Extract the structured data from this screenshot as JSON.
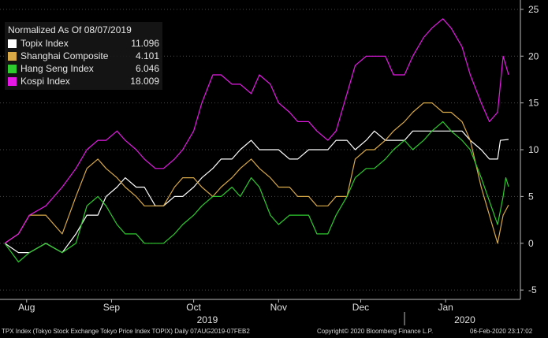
{
  "legend": {
    "header": "Normalized As Of 08/07/2019",
    "items": [
      {
        "name": "Topix Index",
        "value": "11.096",
        "color": "#ffffff"
      },
      {
        "name": "Shanghai Composite",
        "value": "4.101",
        "color": "#d9a948"
      },
      {
        "name": "Hang Seng Index",
        "value": "6.046",
        "color": "#2ecc2e"
      },
      {
        "name": "Kospi Index",
        "value": "18.009",
        "color": "#e619e6"
      }
    ]
  },
  "footer": {
    "left": "TPX Index (Tokyo Stock Exchange Tokyo Price Index TOPIX) Daily 07AUG2019-07FEB2",
    "copyright": "Copyright© 2020 Bloomberg Finance L.P.",
    "timestamp": "06-Feb-2020 23:17:02"
  },
  "chart_data": {
    "type": "line",
    "x_range": [
      "2019-08-07",
      "2020-02-07"
    ],
    "ylim": [
      -6,
      26
    ],
    "yticks": [
      -5,
      0,
      5,
      10,
      15,
      20,
      25
    ],
    "months": [
      {
        "label": "Aug",
        "date": "2019-08-15"
      },
      {
        "label": "Sep",
        "date": "2019-09-15"
      },
      {
        "label": "Oct",
        "date": "2019-10-15"
      },
      {
        "label": "Nov",
        "date": "2019-11-15"
      },
      {
        "label": "Dec",
        "date": "2019-12-15"
      },
      {
        "label": "Jan",
        "date": "2020-01-15"
      }
    ],
    "years": [
      {
        "label": "2019",
        "date": "2019-10-20"
      },
      {
        "label": "2020",
        "date": "2020-01-22"
      }
    ],
    "year_divider": "2019-12-31",
    "series": [
      {
        "name": "Topix Index",
        "color": "#ffffff",
        "points": [
          [
            "2019-08-07",
            0
          ],
          [
            "2019-08-12",
            -1
          ],
          [
            "2019-08-16",
            -1
          ],
          [
            "2019-08-22",
            0
          ],
          [
            "2019-08-28",
            -1
          ],
          [
            "2019-09-02",
            1
          ],
          [
            "2019-09-06",
            3
          ],
          [
            "2019-09-10",
            3
          ],
          [
            "2019-09-13",
            5
          ],
          [
            "2019-09-17",
            6
          ],
          [
            "2019-09-20",
            7
          ],
          [
            "2019-09-24",
            6
          ],
          [
            "2019-09-27",
            6
          ],
          [
            "2019-10-01",
            4
          ],
          [
            "2019-10-04",
            4
          ],
          [
            "2019-10-08",
            5
          ],
          [
            "2019-10-11",
            5
          ],
          [
            "2019-10-15",
            6
          ],
          [
            "2019-10-18",
            7
          ],
          [
            "2019-10-22",
            8
          ],
          [
            "2019-10-25",
            9
          ],
          [
            "2019-10-29",
            9
          ],
          [
            "2019-11-01",
            10
          ],
          [
            "2019-11-05",
            11
          ],
          [
            "2019-11-08",
            10
          ],
          [
            "2019-11-12",
            10
          ],
          [
            "2019-11-15",
            10
          ],
          [
            "2019-11-19",
            9
          ],
          [
            "2019-11-22",
            9
          ],
          [
            "2019-11-26",
            10
          ],
          [
            "2019-11-29",
            10
          ],
          [
            "2019-12-03",
            10
          ],
          [
            "2019-12-06",
            11
          ],
          [
            "2019-12-10",
            11
          ],
          [
            "2019-12-13",
            10
          ],
          [
            "2019-12-17",
            11
          ],
          [
            "2019-12-20",
            12
          ],
          [
            "2019-12-24",
            11
          ],
          [
            "2019-12-27",
            11
          ],
          [
            "2019-12-31",
            11
          ],
          [
            "2020-01-03",
            12
          ],
          [
            "2020-01-07",
            12
          ],
          [
            "2020-01-10",
            12
          ],
          [
            "2020-01-14",
            12
          ],
          [
            "2020-01-17",
            12
          ],
          [
            "2020-01-21",
            12
          ],
          [
            "2020-01-24",
            11
          ],
          [
            "2020-01-28",
            10
          ],
          [
            "2020-01-31",
            9
          ],
          [
            "2020-02-03",
            9
          ],
          [
            "2020-02-04",
            11
          ],
          [
            "2020-02-07",
            11.096
          ]
        ]
      },
      {
        "name": "Shanghai Composite",
        "color": "#d9a948",
        "points": [
          [
            "2019-08-07",
            0
          ],
          [
            "2019-08-12",
            1
          ],
          [
            "2019-08-16",
            3
          ],
          [
            "2019-08-22",
            3
          ],
          [
            "2019-08-28",
            1
          ],
          [
            "2019-09-02",
            5
          ],
          [
            "2019-09-06",
            8
          ],
          [
            "2019-09-10",
            9
          ],
          [
            "2019-09-13",
            8
          ],
          [
            "2019-09-17",
            7
          ],
          [
            "2019-09-20",
            6
          ],
          [
            "2019-09-24",
            5
          ],
          [
            "2019-09-27",
            4
          ],
          [
            "2019-10-01",
            4
          ],
          [
            "2019-10-04",
            4
          ],
          [
            "2019-10-08",
            6
          ],
          [
            "2019-10-11",
            7
          ],
          [
            "2019-10-15",
            7
          ],
          [
            "2019-10-18",
            6
          ],
          [
            "2019-10-22",
            5
          ],
          [
            "2019-10-25",
            6
          ],
          [
            "2019-10-29",
            7
          ],
          [
            "2019-11-01",
            8
          ],
          [
            "2019-11-05",
            9
          ],
          [
            "2019-11-08",
            8
          ],
          [
            "2019-11-12",
            7
          ],
          [
            "2019-11-15",
            6
          ],
          [
            "2019-11-19",
            6
          ],
          [
            "2019-11-22",
            5
          ],
          [
            "2019-11-26",
            5
          ],
          [
            "2019-11-29",
            4
          ],
          [
            "2019-12-03",
            4
          ],
          [
            "2019-12-06",
            5
          ],
          [
            "2019-12-10",
            5
          ],
          [
            "2019-12-13",
            9
          ],
          [
            "2019-12-17",
            10
          ],
          [
            "2019-12-20",
            10
          ],
          [
            "2019-12-24",
            11
          ],
          [
            "2019-12-27",
            12
          ],
          [
            "2019-12-31",
            13
          ],
          [
            "2020-01-03",
            14
          ],
          [
            "2020-01-07",
            15
          ],
          [
            "2020-01-10",
            15
          ],
          [
            "2020-01-14",
            14
          ],
          [
            "2020-01-17",
            14
          ],
          [
            "2020-01-21",
            13
          ],
          [
            "2020-01-24",
            11
          ],
          [
            "2020-01-28",
            6
          ],
          [
            "2020-02-03",
            0
          ],
          [
            "2020-02-05",
            3
          ],
          [
            "2020-02-07",
            4.101
          ]
        ]
      },
      {
        "name": "Hang Seng Index",
        "color": "#2ecc2e",
        "points": [
          [
            "2019-08-07",
            0
          ],
          [
            "2019-08-12",
            -2
          ],
          [
            "2019-08-16",
            -1
          ],
          [
            "2019-08-22",
            0
          ],
          [
            "2019-08-28",
            -1
          ],
          [
            "2019-09-02",
            0
          ],
          [
            "2019-09-06",
            4
          ],
          [
            "2019-09-10",
            5
          ],
          [
            "2019-09-13",
            4
          ],
          [
            "2019-09-17",
            2
          ],
          [
            "2019-09-20",
            1
          ],
          [
            "2019-09-24",
            1
          ],
          [
            "2019-09-27",
            0
          ],
          [
            "2019-10-01",
            0
          ],
          [
            "2019-10-04",
            0
          ],
          [
            "2019-10-08",
            1
          ],
          [
            "2019-10-11",
            2
          ],
          [
            "2019-10-15",
            3
          ],
          [
            "2019-10-18",
            4
          ],
          [
            "2019-10-22",
            5
          ],
          [
            "2019-10-25",
            5
          ],
          [
            "2019-10-29",
            6
          ],
          [
            "2019-11-01",
            5
          ],
          [
            "2019-11-05",
            7
          ],
          [
            "2019-11-08",
            6
          ],
          [
            "2019-11-12",
            3
          ],
          [
            "2019-11-15",
            2
          ],
          [
            "2019-11-19",
            3
          ],
          [
            "2019-11-22",
            3
          ],
          [
            "2019-11-26",
            3
          ],
          [
            "2019-11-29",
            1
          ],
          [
            "2019-12-03",
            1
          ],
          [
            "2019-12-06",
            3
          ],
          [
            "2019-12-10",
            5
          ],
          [
            "2019-12-13",
            7
          ],
          [
            "2019-12-17",
            8
          ],
          [
            "2019-12-20",
            8
          ],
          [
            "2019-12-24",
            9
          ],
          [
            "2019-12-27",
            10
          ],
          [
            "2019-12-31",
            11
          ],
          [
            "2020-01-03",
            10
          ],
          [
            "2020-01-07",
            11
          ],
          [
            "2020-01-10",
            12
          ],
          [
            "2020-01-14",
            13
          ],
          [
            "2020-01-17",
            12
          ],
          [
            "2020-01-21",
            11
          ],
          [
            "2020-01-24",
            10
          ],
          [
            "2020-01-28",
            7
          ],
          [
            "2020-02-03",
            2
          ],
          [
            "2020-02-05",
            5
          ],
          [
            "2020-02-06",
            7
          ],
          [
            "2020-02-07",
            6.046
          ]
        ]
      },
      {
        "name": "Kospi Index",
        "color": "#e619e6",
        "points": [
          [
            "2019-08-07",
            0
          ],
          [
            "2019-08-12",
            1
          ],
          [
            "2019-08-16",
            3
          ],
          [
            "2019-08-22",
            4
          ],
          [
            "2019-08-28",
            6
          ],
          [
            "2019-09-02",
            8
          ],
          [
            "2019-09-06",
            10
          ],
          [
            "2019-09-10",
            11
          ],
          [
            "2019-09-13",
            11
          ],
          [
            "2019-09-17",
            12
          ],
          [
            "2019-09-20",
            11
          ],
          [
            "2019-09-24",
            10
          ],
          [
            "2019-09-27",
            9
          ],
          [
            "2019-10-01",
            8
          ],
          [
            "2019-10-04",
            8
          ],
          [
            "2019-10-08",
            9
          ],
          [
            "2019-10-11",
            10
          ],
          [
            "2019-10-15",
            12
          ],
          [
            "2019-10-18",
            15
          ],
          [
            "2019-10-22",
            18
          ],
          [
            "2019-10-25",
            18
          ],
          [
            "2019-10-29",
            17
          ],
          [
            "2019-11-01",
            17
          ],
          [
            "2019-11-05",
            16
          ],
          [
            "2019-11-08",
            18
          ],
          [
            "2019-11-12",
            17
          ],
          [
            "2019-11-15",
            15
          ],
          [
            "2019-11-19",
            14
          ],
          [
            "2019-11-22",
            13
          ],
          [
            "2019-11-26",
            13
          ],
          [
            "2019-11-29",
            12
          ],
          [
            "2019-12-03",
            11
          ],
          [
            "2019-12-06",
            12
          ],
          [
            "2019-12-10",
            16
          ],
          [
            "2019-12-13",
            19
          ],
          [
            "2019-12-17",
            20
          ],
          [
            "2019-12-20",
            20
          ],
          [
            "2019-12-24",
            20
          ],
          [
            "2019-12-27",
            18
          ],
          [
            "2019-12-31",
            18
          ],
          [
            "2020-01-03",
            20
          ],
          [
            "2020-01-07",
            22
          ],
          [
            "2020-01-10",
            23
          ],
          [
            "2020-01-14",
            24
          ],
          [
            "2020-01-17",
            23
          ],
          [
            "2020-01-21",
            21
          ],
          [
            "2020-01-24",
            18
          ],
          [
            "2020-01-28",
            15
          ],
          [
            "2020-01-31",
            13
          ],
          [
            "2020-02-03",
            14
          ],
          [
            "2020-02-05",
            20
          ],
          [
            "2020-02-07",
            18.009
          ]
        ]
      }
    ]
  }
}
